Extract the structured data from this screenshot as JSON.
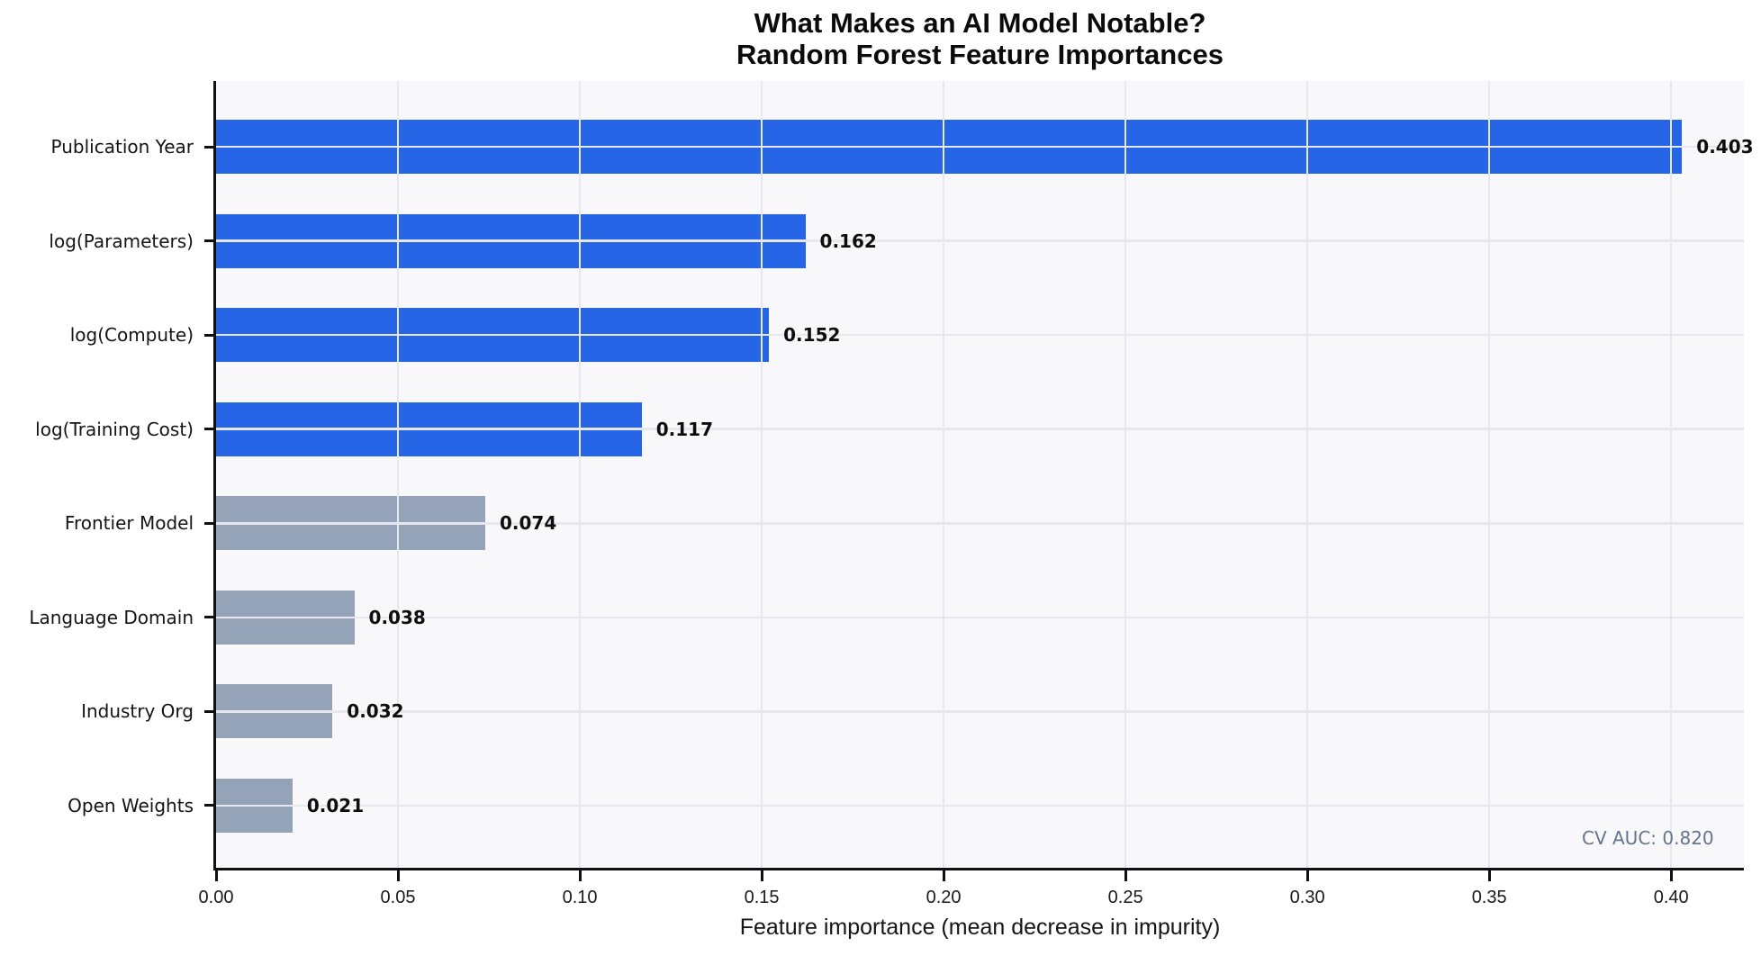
{
  "title": {
    "line1": "What Makes an AI Model Notable?",
    "line2": "Random Forest Feature Importances"
  },
  "chart_data": {
    "type": "bar",
    "orientation": "horizontal",
    "title": "What Makes an AI Model Notable?\nRandom Forest Feature Importances",
    "categories": [
      "Publication Year",
      "log(Parameters)",
      "log(Compute)",
      "log(Training Cost)",
      "Frontier Model",
      "Language Domain",
      "Industry Org",
      "Open Weights"
    ],
    "values": [
      0.403,
      0.162,
      0.152,
      0.117,
      0.074,
      0.038,
      0.032,
      0.021
    ],
    "value_labels": [
      "0.403",
      "0.162",
      "0.152",
      "0.117",
      "0.074",
      "0.038",
      "0.032",
      "0.021"
    ],
    "bar_colors": [
      "#2665e5",
      "#2665e5",
      "#2665e5",
      "#2665e5",
      "#94a3b8",
      "#94a3b8",
      "#94a3b8",
      "#94a3b8"
    ],
    "xlabel": "Feature importance (mean decrease in impurity)",
    "ylabel": "",
    "xlim": [
      0,
      0.42
    ],
    "x_ticks": [
      0.0,
      0.05,
      0.1,
      0.15,
      0.2,
      0.25,
      0.3,
      0.35,
      0.4
    ],
    "x_tick_labels": [
      "0.00",
      "0.05",
      "0.10",
      "0.15",
      "0.20",
      "0.25",
      "0.30",
      "0.35",
      "0.40"
    ],
    "grid": true,
    "grid_over_bars": true,
    "legend": false,
    "annotation": "CV AUC: 0.820"
  },
  "colors": {
    "blue_bar": "#2665e5",
    "gray_bar": "#94a3b8",
    "plot_background": "#f8f8fa",
    "gridline": "#e7e7ef",
    "axis": "#101010",
    "annotation_text": "#68748a"
  }
}
